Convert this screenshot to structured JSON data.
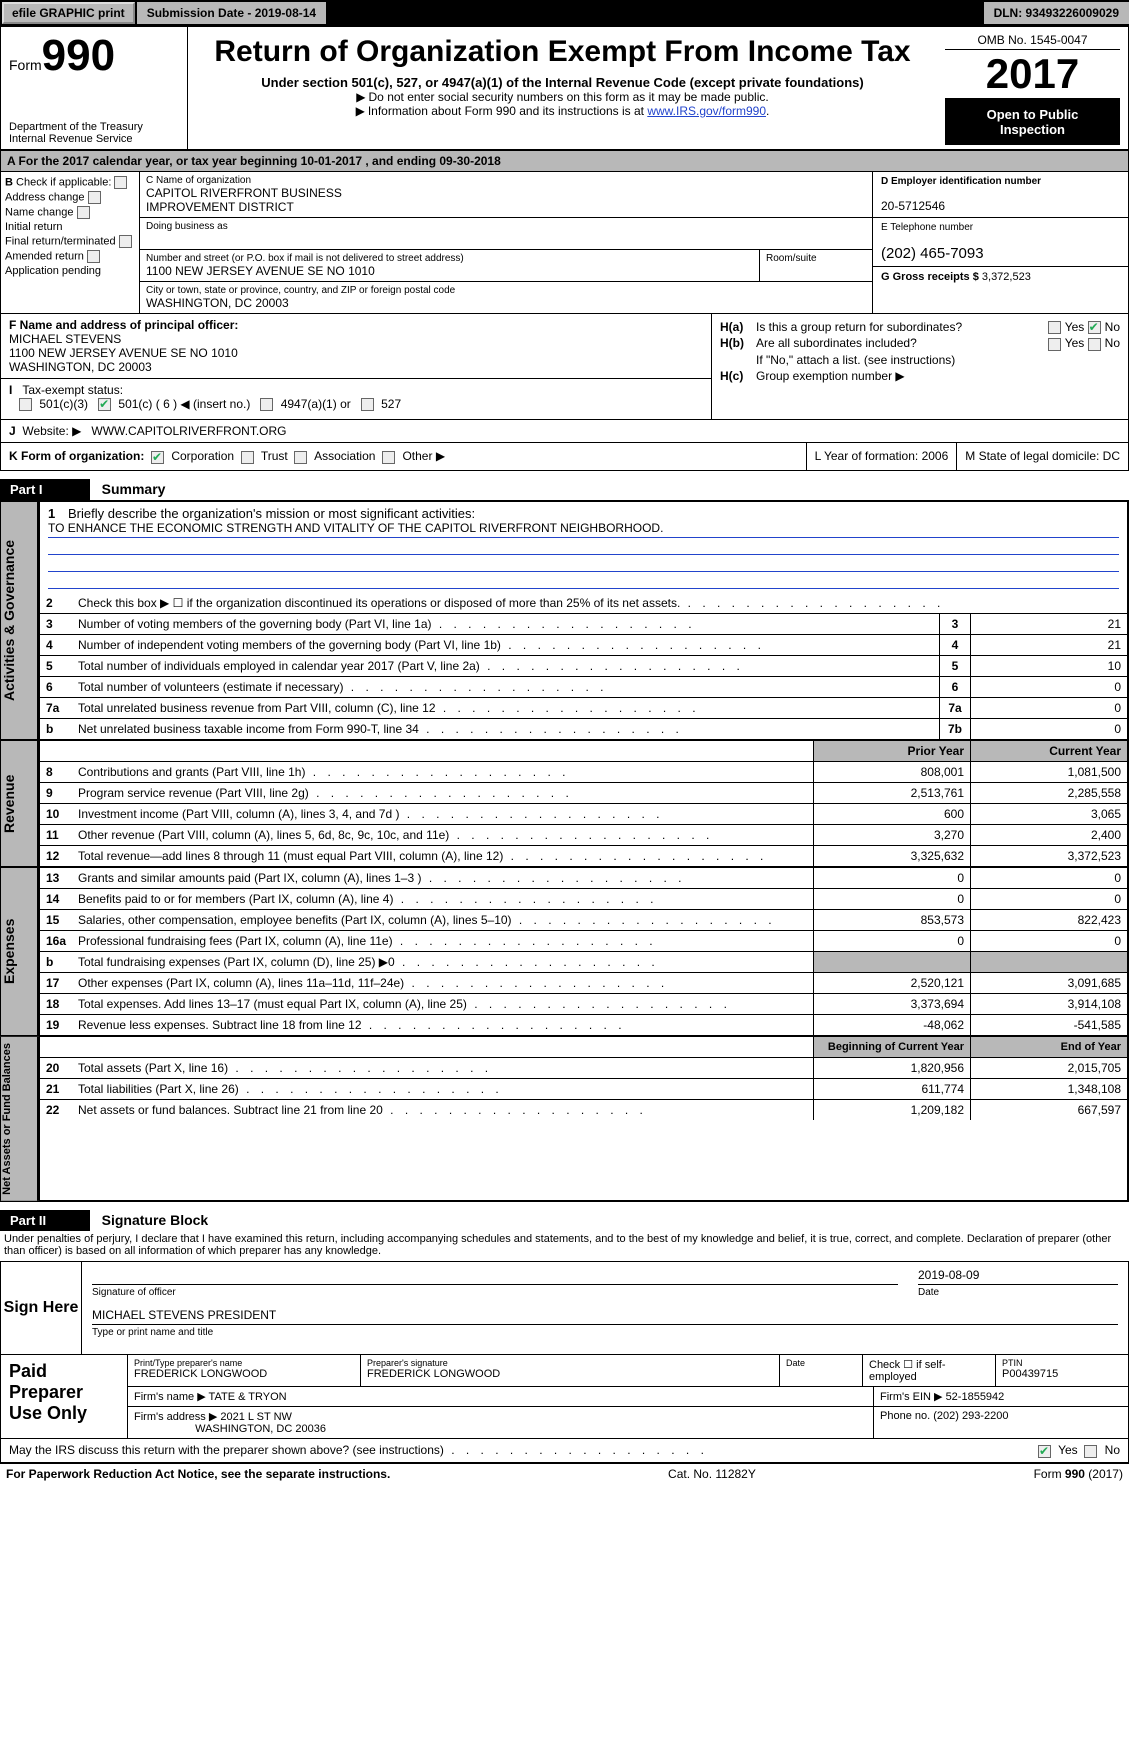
{
  "topbar": {
    "efile": "efile GRAPHIC print",
    "submission_label": "Submission Date - 2019-08-14",
    "dln": "DLN: 93493226009029"
  },
  "header": {
    "form_prefix": "Form",
    "form_no": "990",
    "dept1": "Department of the Treasury",
    "dept2": "Internal Revenue Service",
    "title": "Return of Organization Exempt From Income Tax",
    "subtitle": "Under section 501(c), 527, or 4947(a)(1) of the Internal Revenue Code (except private foundations)",
    "note1": "Do not enter social security numbers on this form as it may be made public.",
    "note2_pre": "Information about Form 990 and its instructions is at ",
    "note2_link": "www.IRS.gov/form990",
    "omb": "OMB No. 1545-0047",
    "year": "2017",
    "inspect1": "Open to Public",
    "inspect2": "Inspection"
  },
  "rowA": "A   For the 2017 calendar year, or tax year beginning 10-01-2017       , and ending 09-30-2018",
  "B": {
    "label": "Check if applicable:",
    "items": [
      "Address change",
      "Name change",
      "Initial return",
      "Final return/terminated",
      "Amended return",
      "Application pending"
    ]
  },
  "C": {
    "name_label": "C Name of organization",
    "name1": "CAPITOL RIVERFRONT BUSINESS",
    "name2": "IMPROVEMENT DISTRICT",
    "dba_label": "Doing business as",
    "addr_label": "Number and street (or P.O. box if mail is not delivered to street address)",
    "room_label": "Room/suite",
    "addr": "1100 NEW JERSEY AVENUE SE NO 1010",
    "city_label": "City or town, state or province, country, and ZIP or foreign postal code",
    "city": "WASHINGTON, DC  20003"
  },
  "D": {
    "ein_label": "D Employer identification number",
    "ein": "20-5712546",
    "phone_label": "E Telephone number",
    "phone": "(202) 465-7093",
    "gross_label": "G Gross receipts $ ",
    "gross": "3,372,523"
  },
  "F": {
    "label": "F Name and address of principal officer:",
    "name": "MICHAEL STEVENS",
    "addr1": "1100 NEW JERSEY AVENUE SE NO 1010",
    "addr2": "WASHINGTON, DC  20003"
  },
  "H": {
    "a": "Is this a group return for subordinates?",
    "b": "Are all subordinates included?",
    "b_note": "If \"No,\" attach a list. (see instructions)",
    "c": "Group exemption number ▶",
    "yes": "Yes",
    "no": "No"
  },
  "I": {
    "label": "Tax-exempt status:",
    "o1": "501(c)(3)",
    "o2": "501(c) ( 6 ) ◀ (insert no.)",
    "o3": "4947(a)(1) or",
    "o4": "527"
  },
  "J": {
    "label": "Website: ▶",
    "val": "WWW.CAPITOLRIVERFRONT.ORG"
  },
  "K": {
    "label": "K Form of organization:",
    "o1": "Corporation",
    "o2": "Trust",
    "o3": "Association",
    "o4": "Other ▶",
    "L": "L Year of formation: 2006",
    "M": "M State of legal domicile: DC"
  },
  "partI": {
    "hdr": "Part I",
    "title": "Summary"
  },
  "tabs": {
    "ag": "Activities & Governance",
    "rev": "Revenue",
    "exp": "Expenses",
    "na": "Net Assets or\nFund Balances"
  },
  "mission": {
    "n": "1",
    "lead": "Briefly describe the organization's mission or most significant activities:",
    "text": "TO ENHANCE THE ECONOMIC STRENGTH AND VITALITY OF THE CAPITOL RIVERFRONT NEIGHBORHOOD."
  },
  "lines_ag": [
    {
      "n": "2",
      "t": "Check this box ▶ ☐  if the organization discontinued its operations or disposed of more than 25% of its net assets.",
      "box": "",
      "v": ""
    },
    {
      "n": "3",
      "t": "Number of voting members of the governing body (Part VI, line 1a)",
      "box": "3",
      "v": "21"
    },
    {
      "n": "4",
      "t": "Number of independent voting members of the governing body (Part VI, line 1b)",
      "box": "4",
      "v": "21"
    },
    {
      "n": "5",
      "t": "Total number of individuals employed in calendar year 2017 (Part V, line 2a)",
      "box": "5",
      "v": "10"
    },
    {
      "n": "6",
      "t": "Total number of volunteers (estimate if necessary)",
      "box": "6",
      "v": "0"
    },
    {
      "n": "7a",
      "t": "Total unrelated business revenue from Part VIII, column (C), line 12",
      "box": "7a",
      "v": "0"
    },
    {
      "n": "b",
      "t": "Net unrelated business taxable income from Form 990-T, line 34",
      "box": "7b",
      "v": "0"
    }
  ],
  "col_hdr": {
    "prior": "Prior Year",
    "curr": "Current Year",
    "boy": "Beginning of Current Year",
    "eoy": "End of Year"
  },
  "lines_rev": [
    {
      "n": "8",
      "t": "Contributions and grants (Part VIII, line 1h)",
      "p": "808,001",
      "c": "1,081,500"
    },
    {
      "n": "9",
      "t": "Program service revenue (Part VIII, line 2g)",
      "p": "2,513,761",
      "c": "2,285,558"
    },
    {
      "n": "10",
      "t": "Investment income (Part VIII, column (A), lines 3, 4, and 7d )",
      "p": "600",
      "c": "3,065"
    },
    {
      "n": "11",
      "t": "Other revenue (Part VIII, column (A), lines 5, 6d, 8c, 9c, 10c, and 11e)",
      "p": "3,270",
      "c": "2,400"
    },
    {
      "n": "12",
      "t": "Total revenue—add lines 8 through 11 (must equal Part VIII, column (A), line 12)",
      "p": "3,325,632",
      "c": "3,372,523"
    }
  ],
  "lines_exp": [
    {
      "n": "13",
      "t": "Grants and similar amounts paid (Part IX, column (A), lines 1–3 )",
      "p": "0",
      "c": "0"
    },
    {
      "n": "14",
      "t": "Benefits paid to or for members (Part IX, column (A), line 4)",
      "p": "0",
      "c": "0"
    },
    {
      "n": "15",
      "t": "Salaries, other compensation, employee benefits (Part IX, column (A), lines 5–10)",
      "p": "853,573",
      "c": "822,423"
    },
    {
      "n": "16a",
      "t": "Professional fundraising fees (Part IX, column (A), line 11e)",
      "p": "0",
      "c": "0"
    },
    {
      "n": "b",
      "t": "Total fundraising expenses (Part IX, column (D), line 25) ▶0",
      "p": "shade",
      "c": "shade"
    },
    {
      "n": "17",
      "t": "Other expenses (Part IX, column (A), lines 11a–11d, 11f–24e)",
      "p": "2,520,121",
      "c": "3,091,685"
    },
    {
      "n": "18",
      "t": "Total expenses. Add lines 13–17 (must equal Part IX, column (A), line 25)",
      "p": "3,373,694",
      "c": "3,914,108"
    },
    {
      "n": "19",
      "t": "Revenue less expenses. Subtract line 18 from line 12",
      "p": "-48,062",
      "c": "-541,585"
    }
  ],
  "lines_na": [
    {
      "n": "20",
      "t": "Total assets (Part X, line 16)",
      "p": "1,820,956",
      "c": "2,015,705"
    },
    {
      "n": "21",
      "t": "Total liabilities (Part X, line 26)",
      "p": "611,774",
      "c": "1,348,108"
    },
    {
      "n": "22",
      "t": "Net assets or fund balances. Subtract line 21 from line 20",
      "p": "1,209,182",
      "c": "667,597"
    }
  ],
  "partII": {
    "hdr": "Part II",
    "title": "Signature Block"
  },
  "penalty": "Under penalties of perjury, I declare that I have examined this return, including accompanying schedules and statements, and to the best of my knowledge and belief, it is true, correct, and complete. Declaration of preparer (other than officer) is based on all information of which preparer has any knowledge.",
  "sign": {
    "label": "Sign Here",
    "sig_of": "Signature of officer",
    "date": "2019-08-09",
    "date_lab": "Date",
    "name": "MICHAEL STEVENS  PRESIDENT",
    "name_lab": "Type or print name and title"
  },
  "prep": {
    "label": "Paid Preparer Use Only",
    "pt_name_lab": "Print/Type preparer's name",
    "pt_name": "FREDERICK LONGWOOD",
    "pt_sig_lab": "Preparer's signature",
    "pt_sig": "FREDERICK LONGWOOD",
    "date_lab": "Date",
    "check_lab": "Check ☐ if self-employed",
    "ptin_lab": "PTIN",
    "ptin": "P00439715",
    "firm_name_lab": "Firm's name    ▶",
    "firm_name": "TATE & TRYON",
    "firm_ein_lab": "Firm's EIN ▶",
    "firm_ein": "52-1855942",
    "firm_addr_lab": "Firm's address ▶",
    "firm_addr1": "2021 L ST NW",
    "firm_addr2": "WASHINGTON, DC  20036",
    "phone_lab": "Phone no.",
    "phone": "(202) 293-2200"
  },
  "discuss": "May the IRS discuss this return with the preparer shown above? (see instructions)",
  "footer": {
    "pra": "For Paperwork Reduction Act Notice, see the separate instructions.",
    "cat": "Cat. No. 11282Y",
    "form": "Form 990 (2017)"
  }
}
